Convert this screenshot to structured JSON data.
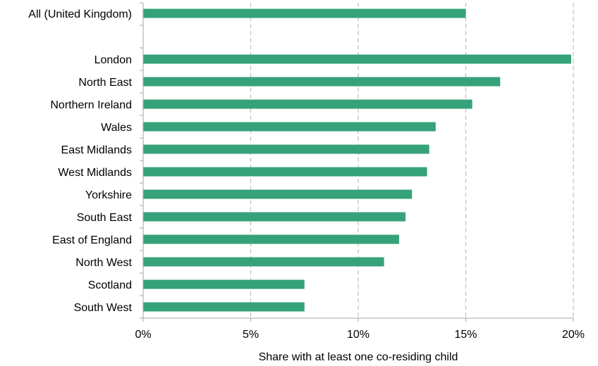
{
  "chart_data": {
    "type": "bar",
    "orientation": "horizontal",
    "categories": [
      "All (United Kingdom)",
      "London",
      "North East",
      "Northern Ireland",
      "Wales",
      "East Midlands",
      "West Midlands",
      "Yorkshire",
      "South East",
      "East of England",
      "North West",
      "Scotland",
      "South West"
    ],
    "values": [
      15.0,
      19.9,
      16.6,
      15.3,
      13.6,
      13.3,
      13.2,
      12.5,
      12.2,
      11.9,
      11.2,
      7.5,
      7.5
    ],
    "xlim": [
      0,
      20
    ],
    "xticks": [
      0,
      5,
      10,
      15,
      20
    ],
    "xtick_labels": [
      "0%",
      "5%",
      "10%",
      "15%",
      "20%"
    ],
    "xlabel": "Share with at least one co-residing child",
    "ylabel": "",
    "title": "",
    "grid": "vertical dashed",
    "legend": "none",
    "bar_color": "#35A27A",
    "grid_color": "#BFBFBF",
    "axis_color": "#A6A6A6"
  }
}
